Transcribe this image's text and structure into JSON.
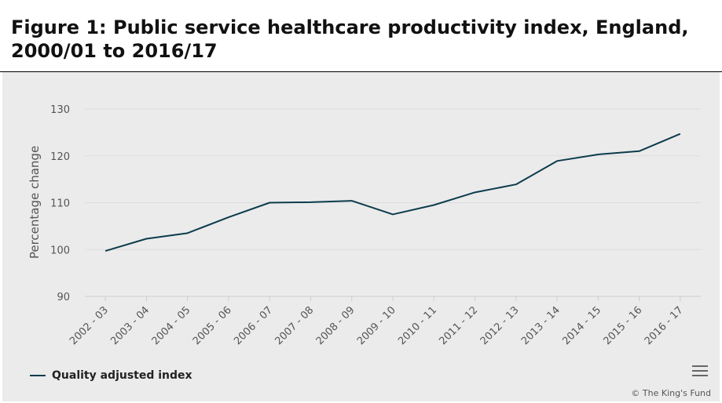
{
  "title": "Figure 1: Public service healthcare productivity index, England, 2000/01 to 2016/17",
  "credit": "© The King's Fund",
  "menu_icon": "hamburger-menu-icon",
  "colors": {
    "line": "#0c3c4c",
    "panel": "#ebebeb",
    "grid": "#dddddd"
  },
  "chart_data": {
    "type": "line",
    "title": "Figure 1: Public service healthcare productivity index, England, 2000/01 to 2016/17",
    "xlabel": "",
    "ylabel": "Percentage change",
    "ylim": [
      90,
      130
    ],
    "yticks": [
      90,
      100,
      110,
      120,
      130
    ],
    "grid": true,
    "legend": "bottom-left",
    "categories": [
      "2002 - 03",
      "2003 - 04",
      "2004 - 05",
      "2005 - 06",
      "2006 - 07",
      "2007 - 08",
      "2008 - 09",
      "2009 - 10",
      "2010 - 11",
      "2011 - 12",
      "2012 - 13",
      "2013 - 14",
      "2014 - 15",
      "2015 - 16",
      "2016 - 17"
    ],
    "series": [
      {
        "name": "Quality adjusted index",
        "values": [
          99.7,
          102.3,
          103.5,
          106.9,
          110.0,
          110.1,
          110.4,
          107.5,
          109.5,
          112.2,
          113.9,
          118.9,
          120.3,
          121.0,
          124.7
        ]
      }
    ]
  }
}
